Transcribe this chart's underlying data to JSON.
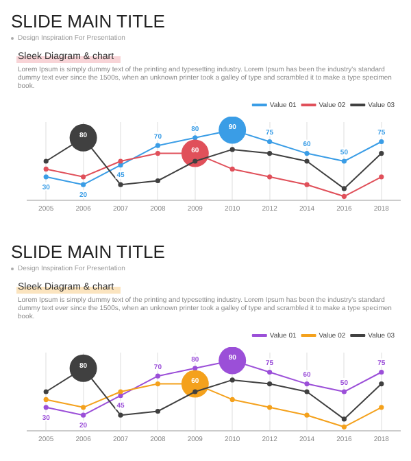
{
  "chart_data": [
    {
      "type": "line",
      "title": "SLIDE MAIN TITLE",
      "subtitle": "Design Inspiration For Presentation",
      "annotations": [
        "Sleek Diagram & chart",
        "Lorem Ipsum is simply dummy text of the printing and typesetting industry. Lorem Ipsum has been the industry's standard dummy text ever since the 1500s, when an unknown printer took a galley of type and scrambled it to make a type specimen book."
      ],
      "categories": [
        "2005",
        "2006",
        "2007",
        "2008",
        "2009",
        "2010",
        "2012",
        "2014",
        "2016",
        "2018"
      ],
      "series": [
        {
          "name": "Value 01",
          "color": "#3a9de6",
          "values": [
            30,
            20,
            45,
            70,
            80,
            90,
            75,
            60,
            50,
            75
          ],
          "value_labels": [
            "30",
            "20",
            "45",
            "70",
            "80",
            "90",
            "75",
            "60",
            "50",
            "75"
          ]
        },
        {
          "name": "Value 02",
          "color": "#e0505a",
          "values": [
            40,
            30,
            50,
            60,
            60,
            40,
            30,
            20,
            5,
            30
          ],
          "value_labels": [
            null,
            null,
            null,
            null,
            "60",
            null,
            null,
            null,
            null,
            null
          ]
        },
        {
          "name": "Value 03",
          "color": "#404040",
          "values": [
            50,
            80,
            20,
            25,
            50,
            65,
            60,
            50,
            15,
            60
          ],
          "value_labels": [
            null,
            "80",
            null,
            null,
            null,
            null,
            null,
            null,
            null,
            null
          ]
        }
      ],
      "grid": "x",
      "legend": "top right",
      "marker": "circle",
      "line_style": "solid"
    },
    {
      "type": "line",
      "title": "SLIDE MAIN TITLE",
      "subtitle": "Design Inspiration For Presentation",
      "annotations": [
        "Sleek Diagram & chart",
        "Lorem Ipsum is simply dummy text of the printing and typesetting industry. Lorem Ipsum has been the industry's standard dummy text ever since the 1500s, when an unknown printer took a galley of type and scrambled it to make a type specimen book."
      ],
      "categories": [
        "2005",
        "2006",
        "2007",
        "2008",
        "2009",
        "2010",
        "2012",
        "2014",
        "2016",
        "2018"
      ],
      "series": [
        {
          "name": "Value 01",
          "color": "#9b4fd8",
          "values": [
            30,
            20,
            45,
            70,
            80,
            90,
            75,
            60,
            50,
            75
          ],
          "value_labels": [
            "30",
            "20",
            "45",
            "70",
            "80",
            "90",
            "75",
            "60",
            "50",
            "75"
          ]
        },
        {
          "name": "Value 02",
          "color": "#f4a11c",
          "values": [
            40,
            30,
            50,
            60,
            60,
            40,
            30,
            20,
            5,
            30
          ],
          "value_labels": [
            null,
            null,
            null,
            null,
            "60",
            null,
            null,
            null,
            null,
            null
          ]
        },
        {
          "name": "Value 03",
          "color": "#404040",
          "values": [
            50,
            80,
            20,
            25,
            50,
            65,
            60,
            50,
            15,
            60
          ],
          "value_labels": [
            null,
            "80",
            null,
            null,
            null,
            null,
            null,
            null,
            null,
            null
          ]
        }
      ],
      "grid": "x",
      "legend": "top right",
      "marker": "circle",
      "line_style": "solid"
    }
  ]
}
